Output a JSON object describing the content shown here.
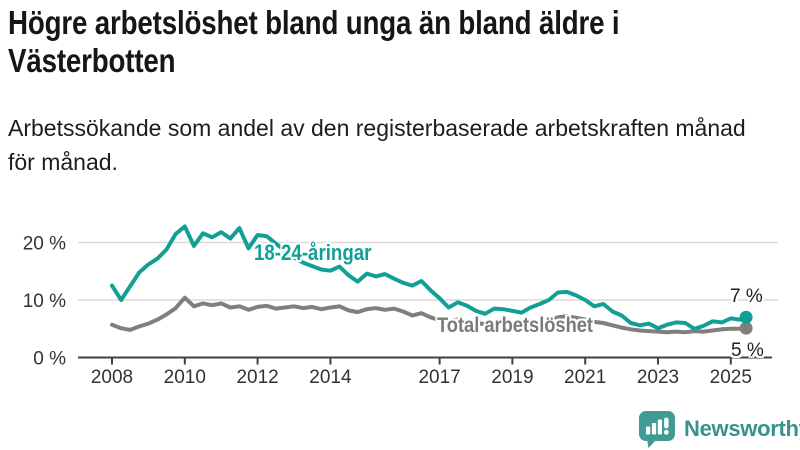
{
  "header": {
    "title_line1": "Högre arbetslöshet bland unga än bland äldre i",
    "title_line2": "Västerbotten",
    "subtitle_line1": "Arbetssökande som andel av den registerbaserade arbetskraften månad",
    "subtitle_line2": "för månad."
  },
  "footer": {
    "brand": "Newsworthy",
    "brand_color": "#38928C",
    "logo_color": "#419B95"
  },
  "chart_data": {
    "type": "line",
    "title": "Högre arbetslöshet bland unga än bland äldre i Västerbotten",
    "subtitle": "Arbetssökande som andel av den registerbaserade arbetskraften månad för månad.",
    "unit": "%",
    "xlim": [
      2008,
      2025.6
    ],
    "ylim": [
      0,
      24
    ],
    "grid": "horizontal",
    "legend_position": "inline-labels",
    "x_ticks": [
      {
        "value": 2008,
        "label": "2008"
      },
      {
        "value": 2010,
        "label": "2010"
      },
      {
        "value": 2012,
        "label": "2012"
      },
      {
        "value": 2014,
        "label": "2014"
      },
      {
        "value": 2017,
        "label": "2017"
      },
      {
        "value": 2019,
        "label": "2019"
      },
      {
        "value": 2021,
        "label": "2021"
      },
      {
        "value": 2023,
        "label": "2023"
      },
      {
        "value": 2025,
        "label": "2025"
      }
    ],
    "y_ticks": [
      {
        "value": 0,
        "label": "0 %"
      },
      {
        "value": 10,
        "label": "10 %"
      },
      {
        "value": 20,
        "label": "20 %"
      }
    ],
    "x": [
      2008,
      2008.25,
      2008.5,
      2008.75,
      2009,
      2009.25,
      2009.5,
      2009.75,
      2010,
      2010.25,
      2010.5,
      2010.75,
      2011,
      2011.25,
      2011.5,
      2011.75,
      2012,
      2012.25,
      2012.5,
      2012.75,
      2013,
      2013.25,
      2013.5,
      2013.75,
      2014,
      2014.25,
      2014.5,
      2014.75,
      2015,
      2015.25,
      2015.5,
      2015.75,
      2016,
      2016.25,
      2016.5,
      2016.75,
      2017,
      2017.25,
      2017.5,
      2017.75,
      2018,
      2018.25,
      2018.5,
      2018.75,
      2019,
      2019.25,
      2019.5,
      2019.75,
      2020,
      2020.25,
      2020.5,
      2020.75,
      2021,
      2021.25,
      2021.5,
      2021.75,
      2022,
      2022.25,
      2022.5,
      2022.75,
      2023,
      2023.25,
      2023.5,
      2023.75,
      2024,
      2024.25,
      2024.5,
      2024.75,
      2025,
      2025.25,
      2025.42
    ],
    "series": [
      {
        "name": "18-24-åringar",
        "color": "#12A096",
        "end_label": "7 %",
        "values": [
          12.5,
          10.0,
          12.4,
          14.8,
          16.2,
          17.2,
          18.8,
          21.5,
          22.8,
          19.4,
          21.6,
          20.9,
          21.8,
          20.7,
          22.5,
          19.0,
          21.3,
          21.1,
          19.8,
          18.6,
          17.4,
          16.5,
          15.9,
          15.3,
          15.1,
          15.8,
          14.3,
          13.2,
          14.6,
          14.1,
          14.5,
          13.7,
          13.0,
          12.5,
          13.3,
          11.7,
          10.3,
          8.7,
          9.6,
          9.0,
          8.1,
          7.6,
          8.5,
          8.4,
          8.1,
          7.8,
          8.7,
          9.3,
          10.0,
          11.3,
          11.4,
          10.8,
          10.0,
          8.9,
          9.3,
          8.0,
          7.3,
          6.0,
          5.6,
          5.9,
          5.1,
          5.7,
          6.1,
          6.0,
          5.0,
          5.5,
          6.3,
          6.1,
          6.8,
          6.6,
          7.0
        ]
      },
      {
        "name": "Total arbetslöshet",
        "color": "#7F7F7F",
        "end_label": "5 %",
        "values": [
          5.7,
          5.1,
          4.8,
          5.4,
          5.9,
          6.6,
          7.5,
          8.6,
          10.4,
          8.9,
          9.4,
          9.1,
          9.4,
          8.7,
          8.9,
          8.3,
          8.8,
          9.0,
          8.5,
          8.7,
          8.9,
          8.6,
          8.8,
          8.4,
          8.7,
          8.9,
          8.2,
          7.9,
          8.4,
          8.6,
          8.3,
          8.5,
          8.0,
          7.3,
          7.7,
          7.0,
          6.5,
          6.3,
          6.6,
          6.2,
          6.0,
          5.8,
          6.1,
          5.9,
          5.8,
          5.6,
          5.9,
          6.1,
          6.3,
          7.0,
          7.2,
          6.9,
          6.6,
          6.2,
          6.0,
          5.6,
          5.2,
          4.9,
          4.7,
          4.6,
          4.5,
          4.4,
          4.5,
          4.4,
          4.6,
          4.5,
          4.7,
          4.9,
          5.0,
          5.0,
          5.1
        ]
      }
    ]
  }
}
